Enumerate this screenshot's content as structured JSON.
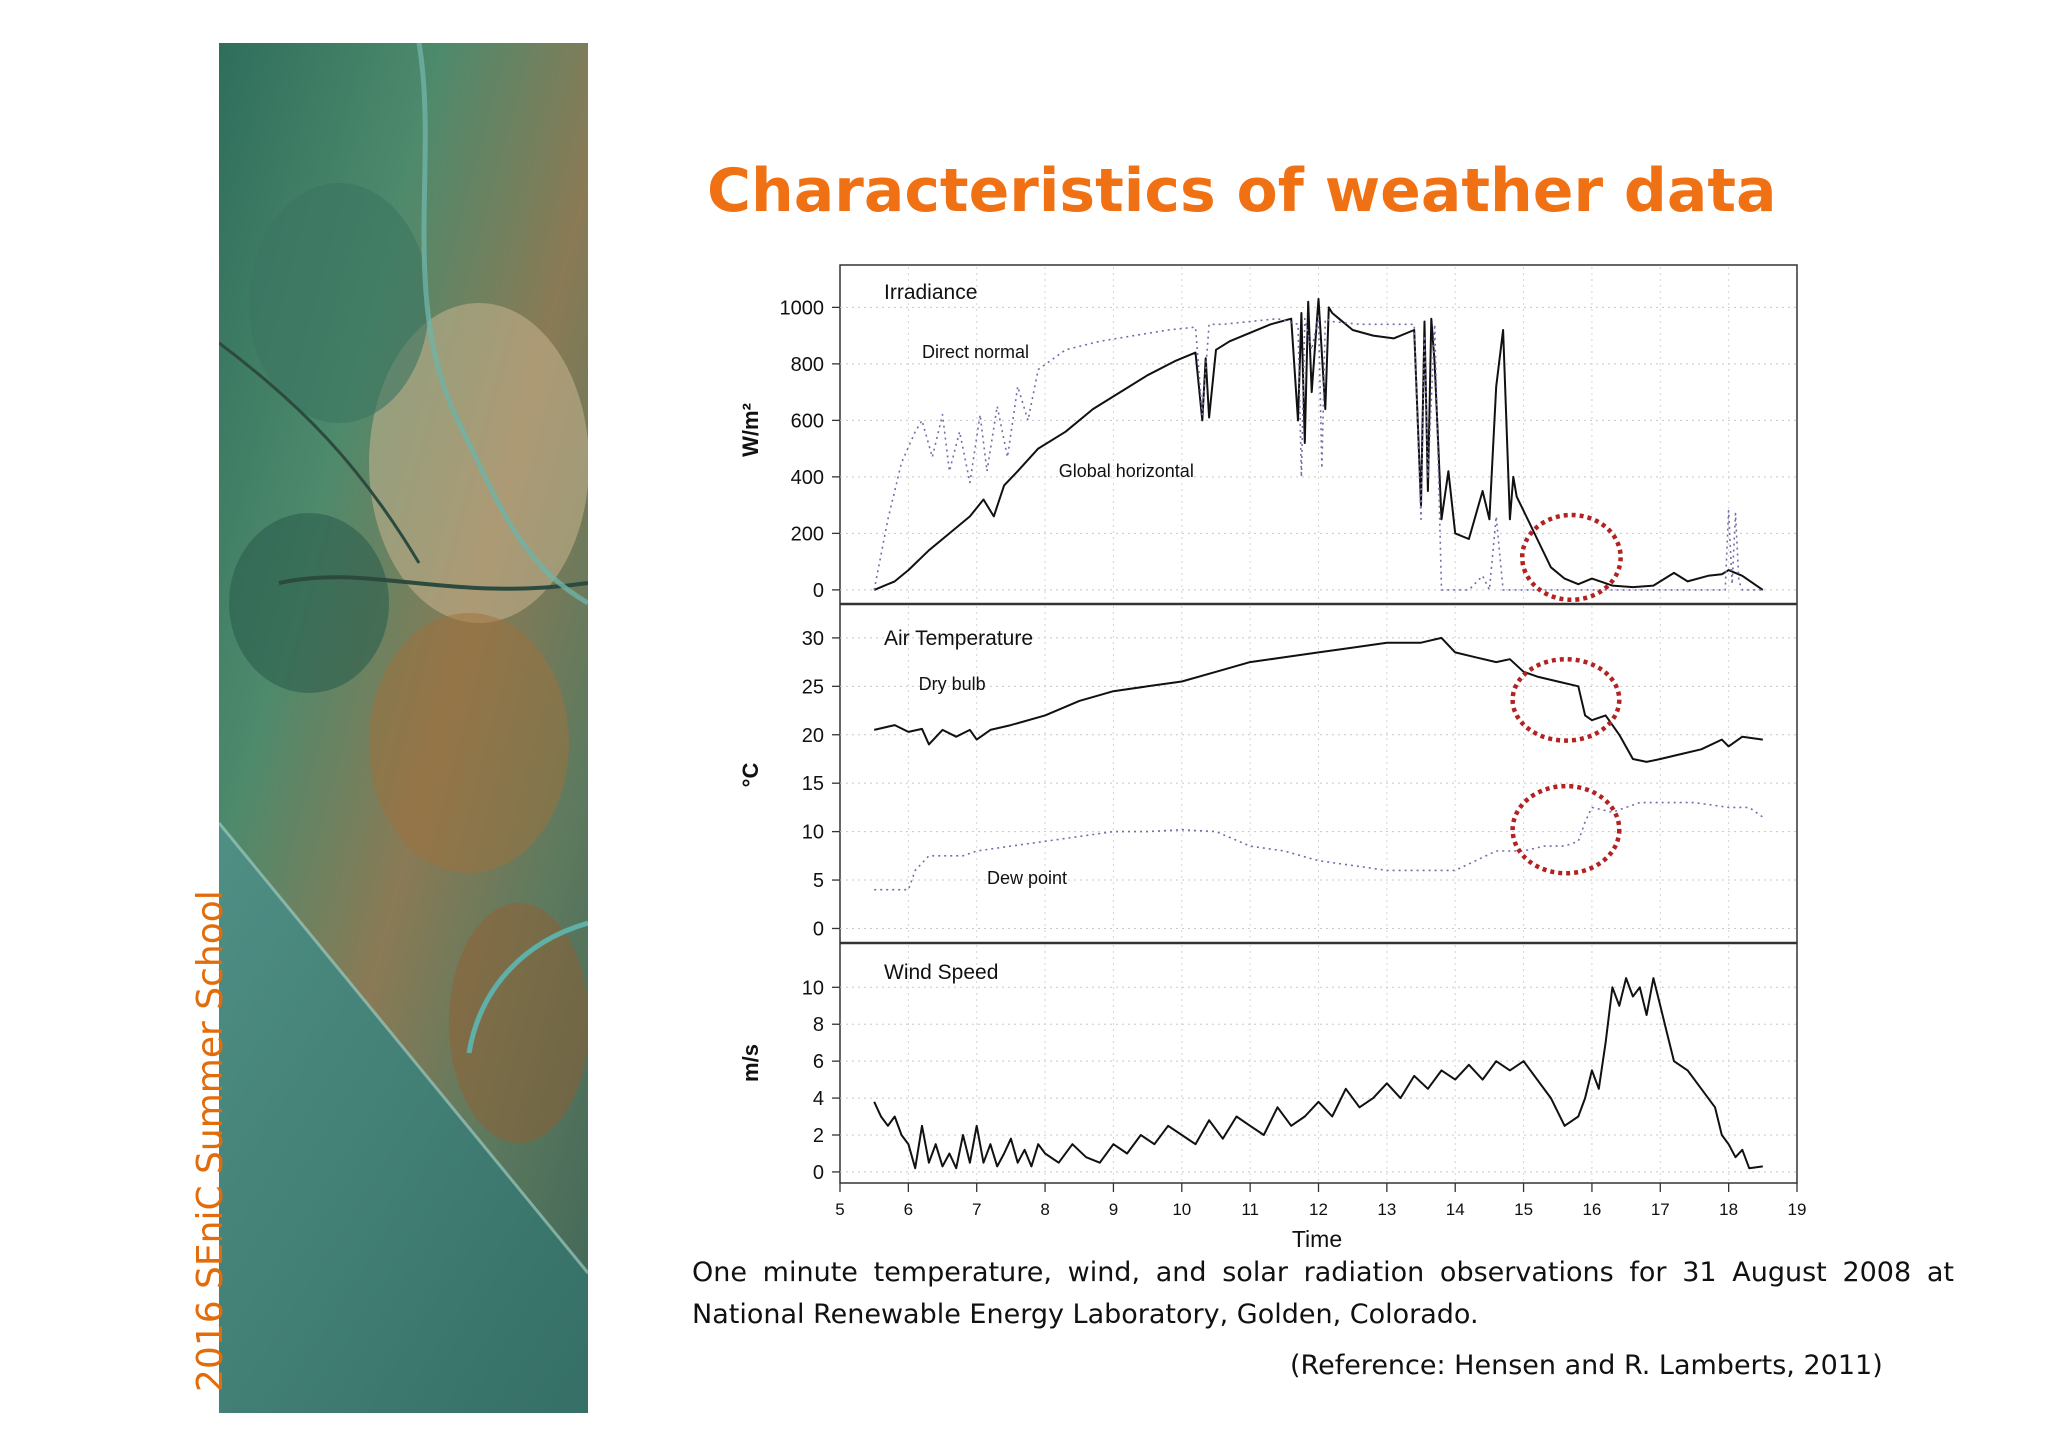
{
  "slide": {
    "title": "Characteristics of weather data",
    "side_label": "2016 SEniC Summer School",
    "caption_line1": "One minute temperature, wind, and solar radiation observations for 31 August 2008 at",
    "caption_line2": "National Renewable Energy Laboratory, Golden, Colorado.",
    "reference": "(Reference: Hensen and R. Lamberts, 2011)"
  },
  "colors": {
    "title": "#f07113",
    "side_label": "#e36c0a",
    "solid_series": "#111111",
    "dotted_series": "#7a6aa8",
    "highlight_circle": "#b22222"
  },
  "chart_data": [
    {
      "type": "line",
      "panel_label": "Irradiance",
      "ylabel": "W/m²",
      "xlim": [
        5,
        19
      ],
      "ylim": [
        -50,
        1150
      ],
      "yticks": [
        0,
        200,
        400,
        600,
        800,
        1000
      ],
      "series": [
        {
          "name": "Global horizontal",
          "style": "solid",
          "x": [
            5.5,
            5.8,
            6.0,
            6.3,
            6.6,
            6.9,
            7.1,
            7.25,
            7.4,
            7.6,
            7.9,
            8.3,
            8.7,
            9.1,
            9.5,
            9.9,
            10.2,
            10.3,
            10.35,
            10.4,
            10.5,
            10.7,
            11.0,
            11.3,
            11.6,
            11.7,
            11.75,
            11.8,
            11.85,
            11.9,
            12.0,
            12.1,
            12.15,
            12.2,
            12.3,
            12.5,
            12.8,
            13.1,
            13.4,
            13.5,
            13.55,
            13.6,
            13.65,
            13.7,
            13.8,
            13.9,
            14.0,
            14.2,
            14.4,
            14.5,
            14.6,
            14.7,
            14.8,
            14.85,
            14.9,
            15.0,
            15.2,
            15.4,
            15.6,
            15.8,
            16.0,
            16.3,
            16.6,
            16.9,
            17.2,
            17.4,
            17.7,
            17.9,
            18.0,
            18.2,
            18.5
          ],
          "y": [
            0,
            30,
            70,
            140,
            200,
            260,
            320,
            260,
            370,
            420,
            500,
            560,
            640,
            700,
            760,
            810,
            840,
            600,
            820,
            610,
            850,
            880,
            910,
            940,
            960,
            600,
            980,
            520,
            1020,
            700,
            1030,
            640,
            1000,
            980,
            960,
            920,
            900,
            890,
            920,
            300,
            950,
            350,
            960,
            800,
            250,
            420,
            200,
            180,
            350,
            250,
            720,
            920,
            250,
            400,
            330,
            280,
            180,
            80,
            40,
            20,
            40,
            15,
            10,
            15,
            60,
            30,
            50,
            55,
            70,
            50,
            0
          ]
        },
        {
          "name": "Direct normal",
          "style": "dotted",
          "x": [
            5.5,
            5.7,
            5.9,
            6.1,
            6.2,
            6.35,
            6.5,
            6.6,
            6.75,
            6.9,
            7.05,
            7.15,
            7.3,
            7.45,
            7.6,
            7.75,
            7.9,
            8.3,
            8.8,
            9.3,
            9.8,
            10.2,
            10.3,
            10.4,
            10.6,
            11.0,
            11.4,
            11.7,
            11.75,
            11.8,
            11.9,
            12.0,
            12.05,
            12.1,
            12.2,
            12.6,
            13.0,
            13.4,
            13.5,
            13.55,
            13.6,
            13.7,
            13.8,
            14.0,
            14.2,
            14.4,
            14.5,
            14.6,
            14.7,
            14.8,
            15.0,
            15.2,
            15.5,
            16.0,
            16.5,
            17.0,
            17.5,
            17.95,
            18.0,
            18.05,
            18.1,
            18.15,
            18.2,
            18.5
          ],
          "y": [
            0,
            250,
            450,
            560,
            600,
            470,
            620,
            420,
            560,
            380,
            620,
            420,
            650,
            470,
            720,
            600,
            780,
            850,
            880,
            900,
            920,
            930,
            620,
            940,
            940,
            950,
            960,
            940,
            400,
            960,
            850,
            970,
            430,
            960,
            950,
            940,
            940,
            940,
            250,
            900,
            400,
            940,
            0,
            0,
            0,
            50,
            0,
            260,
            0,
            0,
            0,
            0,
            0,
            0,
            0,
            0,
            0,
            0,
            280,
            20,
            270,
            30,
            0,
            0
          ]
        }
      ],
      "annotations": [
        {
          "text": "Direct normal",
          "x": 6.2,
          "y": 820
        },
        {
          "text": "Global horizontal",
          "x": 8.2,
          "y": 400
        }
      ],
      "highlights": [
        {
          "x": 15.7,
          "y": 115,
          "rx": 0.72,
          "ry": 150
        }
      ]
    },
    {
      "type": "line",
      "panel_label": "Air Temperature",
      "ylabel": "°C",
      "xlim": [
        5,
        19
      ],
      "ylim": [
        -1.5,
        33.5
      ],
      "yticks": [
        0,
        5,
        10,
        15,
        20,
        25,
        30
      ],
      "series": [
        {
          "name": "Dry bulb",
          "style": "solid",
          "x": [
            5.5,
            5.8,
            6.0,
            6.2,
            6.3,
            6.5,
            6.7,
            6.9,
            7.0,
            7.2,
            7.5,
            8.0,
            8.5,
            9.0,
            9.5,
            10.0,
            10.5,
            11.0,
            11.5,
            12.0,
            12.5,
            13.0,
            13.5,
            13.8,
            14.0,
            14.3,
            14.6,
            14.8,
            15.0,
            15.2,
            15.5,
            15.8,
            15.9,
            16.0,
            16.2,
            16.4,
            16.6,
            16.8,
            17.0,
            17.3,
            17.6,
            17.9,
            18.0,
            18.2,
            18.5
          ],
          "y": [
            20.5,
            21.0,
            20.3,
            20.6,
            19.0,
            20.5,
            19.8,
            20.5,
            19.5,
            20.5,
            21.0,
            22.0,
            23.5,
            24.5,
            25.0,
            25.5,
            26.5,
            27.5,
            28.0,
            28.5,
            29.0,
            29.5,
            29.5,
            30.0,
            28.5,
            28.0,
            27.5,
            27.8,
            26.5,
            26.0,
            25.5,
            25.0,
            22.0,
            21.5,
            22.0,
            20.0,
            17.5,
            17.2,
            17.5,
            18.0,
            18.5,
            19.5,
            18.8,
            19.8,
            19.5
          ]
        },
        {
          "name": "Dew point",
          "style": "dotted",
          "x": [
            5.5,
            5.8,
            6.0,
            6.1,
            6.3,
            6.5,
            6.8,
            7.0,
            7.5,
            8.0,
            8.5,
            9.0,
            9.5,
            10.0,
            10.5,
            11.0,
            11.5,
            12.0,
            12.5,
            13.0,
            13.5,
            14.0,
            14.3,
            14.6,
            15.0,
            15.3,
            15.6,
            15.8,
            15.9,
            16.0,
            16.3,
            16.7,
            17.0,
            17.5,
            18.0,
            18.3,
            18.5
          ],
          "y": [
            4.0,
            4.0,
            4.0,
            6.0,
            7.5,
            7.5,
            7.5,
            8.0,
            8.5,
            9.0,
            9.5,
            10.0,
            10.0,
            10.2,
            10.0,
            8.5,
            8.0,
            7.0,
            6.5,
            6.0,
            6.0,
            6.0,
            7.0,
            8.0,
            8.0,
            8.5,
            8.5,
            9.0,
            11.0,
            12.5,
            12.0,
            13.0,
            13.0,
            13.0,
            12.5,
            12.5,
            11.5
          ]
        }
      ],
      "annotations": [
        {
          "text": "Dry bulb",
          "x": 6.15,
          "y": 24.6
        },
        {
          "text": "Dew point",
          "x": 7.15,
          "y": 4.6
        }
      ],
      "highlights": [
        {
          "x": 15.62,
          "y": 23.6,
          "rx": 0.78,
          "ry": 4.2
        },
        {
          "x": 15.62,
          "y": 10.2,
          "rx": 0.78,
          "ry": 4.5
        }
      ]
    },
    {
      "type": "line",
      "panel_label": "Wind Speed",
      "ylabel": "m/s",
      "xlim": [
        5,
        19
      ],
      "ylim": [
        -0.6,
        12.4
      ],
      "yticks": [
        0,
        2,
        4,
        6,
        8,
        10
      ],
      "xticks": [
        5,
        6,
        7,
        8,
        9,
        10,
        11,
        12,
        13,
        14,
        15,
        16,
        17,
        18,
        19
      ],
      "xlabel": "Time",
      "series": [
        {
          "name": "",
          "style": "solid",
          "x": [
            5.5,
            5.6,
            5.7,
            5.8,
            5.9,
            6.0,
            6.1,
            6.2,
            6.3,
            6.4,
            6.5,
            6.6,
            6.7,
            6.8,
            6.9,
            7.0,
            7.1,
            7.2,
            7.3,
            7.4,
            7.5,
            7.6,
            7.7,
            7.8,
            7.9,
            8.0,
            8.2,
            8.4,
            8.6,
            8.8,
            9.0,
            9.2,
            9.4,
            9.6,
            9.8,
            10.0,
            10.2,
            10.4,
            10.6,
            10.8,
            11.0,
            11.2,
            11.4,
            11.6,
            11.8,
            12.0,
            12.2,
            12.4,
            12.6,
            12.8,
            13.0,
            13.2,
            13.4,
            13.6,
            13.8,
            14.0,
            14.2,
            14.4,
            14.6,
            14.8,
            15.0,
            15.2,
            15.4,
            15.6,
            15.8,
            15.9,
            16.0,
            16.1,
            16.2,
            16.3,
            16.4,
            16.5,
            16.6,
            16.7,
            16.8,
            16.9,
            17.0,
            17.1,
            17.2,
            17.4,
            17.6,
            17.8,
            17.9,
            18.0,
            18.1,
            18.2,
            18.3,
            18.5
          ],
          "y": [
            3.8,
            3.0,
            2.5,
            3.0,
            2.0,
            1.5,
            0.2,
            2.5,
            0.5,
            1.5,
            0.3,
            1.0,
            0.2,
            2.0,
            0.5,
            2.5,
            0.5,
            1.5,
            0.3,
            1.0,
            1.8,
            0.5,
            1.2,
            0.3,
            1.5,
            1.0,
            0.5,
            1.5,
            0.8,
            0.5,
            1.5,
            1.0,
            2.0,
            1.5,
            2.5,
            2.0,
            1.5,
            2.8,
            1.8,
            3.0,
            2.5,
            2.0,
            3.5,
            2.5,
            3.0,
            3.8,
            3.0,
            4.5,
            3.5,
            4.0,
            4.8,
            4.0,
            5.2,
            4.5,
            5.5,
            5.0,
            5.8,
            5.0,
            6.0,
            5.5,
            6.0,
            5.0,
            4.0,
            2.5,
            3.0,
            4.0,
            5.5,
            4.5,
            7.0,
            10.0,
            9.0,
            10.5,
            9.5,
            10.0,
            8.5,
            10.5,
            9.0,
            7.5,
            6.0,
            5.5,
            4.5,
            3.5,
            2.0,
            1.5,
            0.8,
            1.2,
            0.2,
            0.3
          ]
        }
      ],
      "annotations": [],
      "highlights": []
    }
  ]
}
